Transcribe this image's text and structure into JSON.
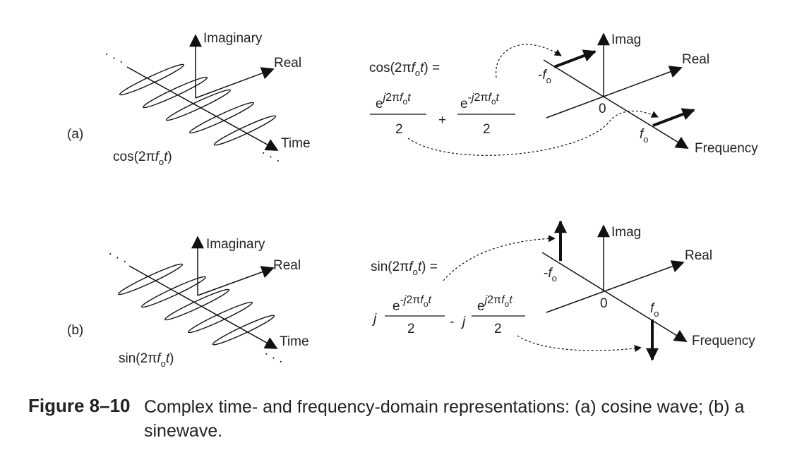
{
  "panel_a": {
    "label": "(a)",
    "time_axes": {
      "imaginary": "Imaginary",
      "real": "Real",
      "time": "Time"
    },
    "waveform": {
      "prefix": "cos(2",
      "pi": "π",
      "f": "f",
      "sub": "o",
      "t": "t",
      "close": ")"
    },
    "equation": {
      "lhs": {
        "prefix": "cos(2",
        "pi": "π",
        "f": "f",
        "sub": "o",
        "t": "t",
        "tail": ") ="
      },
      "term1": {
        "base": "e",
        "exp_j": "j",
        "exp_mid": "2π",
        "exp_f": "f",
        "exp_sub": "o",
        "exp_t": "t",
        "denominator": "2"
      },
      "operator": "+",
      "term2": {
        "base": "e",
        "exp_sign": "-",
        "exp_j": "j",
        "exp_mid": "2π",
        "exp_f": "f",
        "exp_sub": "o",
        "exp_t": "t",
        "denominator": "2"
      }
    },
    "freq_axes": {
      "imag": "Imag",
      "real": "Real",
      "frequency": "Frequency",
      "zero": "0"
    },
    "neg_freq": {
      "sign": "-",
      "f": "f",
      "sub": "o"
    },
    "pos_freq": {
      "f": "f",
      "sub": "o"
    }
  },
  "panel_b": {
    "label": "(b)",
    "time_axes": {
      "imaginary": "Imaginary",
      "real": "Real",
      "time": "Time"
    },
    "waveform": {
      "prefix": "sin(2",
      "pi": "π",
      "f": "f",
      "sub": "o",
      "t": "t",
      "close": ")"
    },
    "equation": {
      "lhs": {
        "prefix": "sin(2",
        "pi": "π",
        "f": "f",
        "sub": "o",
        "t": "t",
        "tail": ") ="
      },
      "coef1": "j",
      "term1": {
        "base": "e",
        "exp_sign": "-",
        "exp_j": "j",
        "exp_mid": "2π",
        "exp_f": "f",
        "exp_sub": "o",
        "exp_t": "t",
        "denominator": "2"
      },
      "operator": "-",
      "coef2": "j",
      "term2": {
        "base": "e",
        "exp_j": "j",
        "exp_mid": "2π",
        "exp_f": "f",
        "exp_sub": "o",
        "exp_t": "t",
        "denominator": "2"
      }
    },
    "freq_axes": {
      "imag": "Imag",
      "real": "Real",
      "frequency": "Frequency",
      "zero": "0"
    },
    "neg_freq": {
      "sign": "-",
      "f": "f",
      "sub": "o"
    },
    "pos_freq": {
      "f": "f",
      "sub": "o"
    }
  },
  "caption": {
    "label": "Figure 8–10",
    "text": "Complex time- and frequency-domain representations: (a) cosine wave; (b) a sinewave."
  }
}
